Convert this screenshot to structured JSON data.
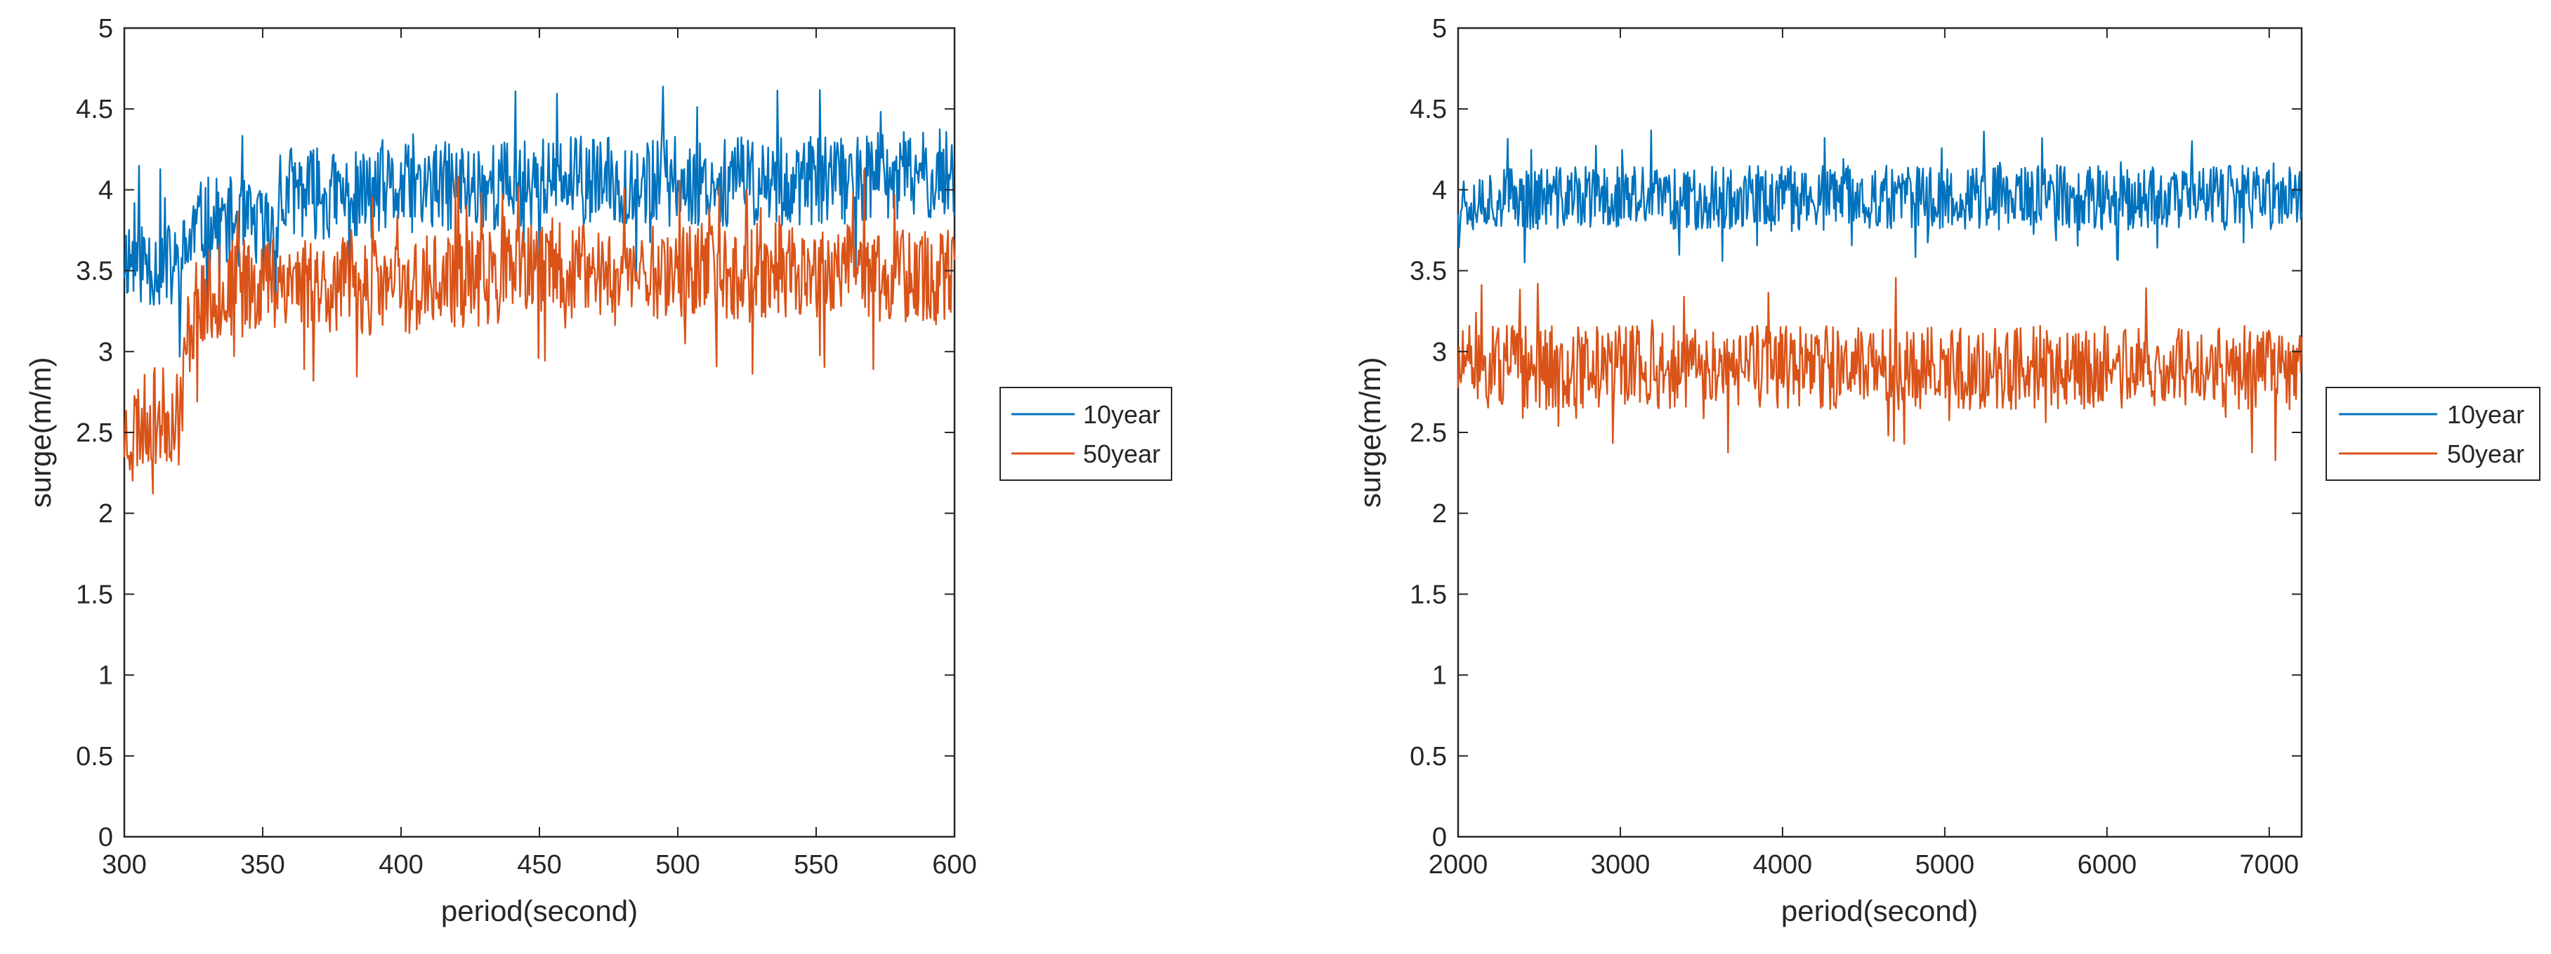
{
  "chart_data": [
    {
      "type": "line",
      "title": "",
      "xlabel": "period(second)",
      "ylabel": "surge(m/m)",
      "xlim": [
        300,
        600
      ],
      "ylim": [
        0,
        5
      ],
      "xticks": [
        300,
        350,
        400,
        450,
        500,
        550,
        600
      ],
      "yticks": [
        0,
        0.5,
        1,
        1.5,
        2,
        2.5,
        3,
        3.5,
        4,
        4.5,
        5
      ],
      "legend_position": "outside-right",
      "series": [
        {
          "name": "10year",
          "color": "#0072BD",
          "x": [
            300,
            310,
            320,
            325,
            330,
            340,
            350,
            355,
            360,
            380,
            400,
            450,
            500,
            550,
            600
          ],
          "mean": [
            3.6,
            3.55,
            3.5,
            3.75,
            3.8,
            3.8,
            3.75,
            3.8,
            4.0,
            3.95,
            4.0,
            4.05,
            4.05,
            4.05,
            4.1
          ],
          "amplitude": 0.28,
          "seed": 11
        },
        {
          "name": "50year",
          "color": "#D95319",
          "x": [
            300,
            310,
            320,
            323,
            326,
            340,
            350,
            360,
            380,
            400,
            450,
            500,
            550,
            600
          ],
          "mean": [
            2.5,
            2.6,
            2.6,
            3.1,
            3.3,
            3.4,
            3.45,
            3.45,
            3.4,
            3.4,
            3.5,
            3.5,
            3.5,
            3.45
          ],
          "amplitude": 0.3,
          "seed": 23
        }
      ]
    },
    {
      "type": "line",
      "title": "",
      "xlabel": "period(second)",
      "ylabel": "surge(m/m)",
      "xlim": [
        2000,
        7200
      ],
      "ylim": [
        0,
        5
      ],
      "xticks": [
        2000,
        3000,
        4000,
        5000,
        6000,
        7000
      ],
      "yticks": [
        0,
        0.5,
        1,
        1.5,
        2,
        2.5,
        3,
        3.5,
        4,
        4.5,
        5
      ],
      "legend_position": "outside-right",
      "series": [
        {
          "name": "10year",
          "color": "#0072BD",
          "x": [
            2000,
            3000,
            4000,
            5000,
            6000,
            7200
          ],
          "mean": [
            3.95,
            3.95,
            3.95,
            3.95,
            3.95,
            3.95
          ],
          "amplitude": 0.2,
          "seed": 37
        },
        {
          "name": "50year",
          "color": "#D95319",
          "x": [
            2000,
            3000,
            4000,
            5000,
            6000,
            7200
          ],
          "mean": [
            2.9,
            2.9,
            2.9,
            2.9,
            2.9,
            2.9
          ],
          "amplitude": 0.26,
          "seed": 51
        }
      ]
    }
  ]
}
